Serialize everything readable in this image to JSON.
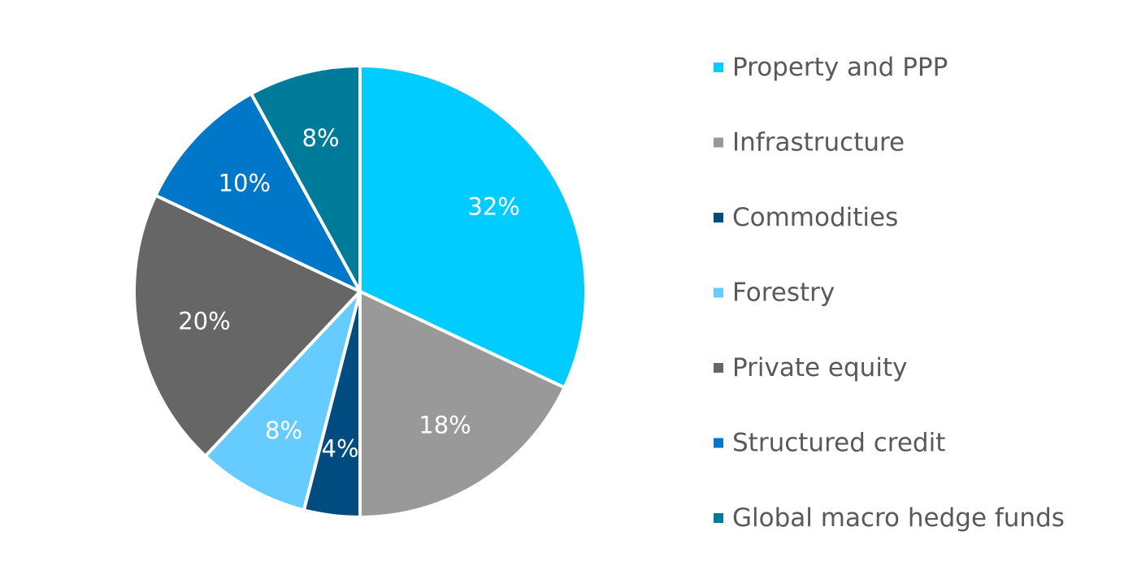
{
  "chart_data": {
    "type": "pie",
    "title": "",
    "categories": [
      "Property and PPP",
      "Infrastructure",
      "Commodities",
      "Forestry",
      "Private equity",
      "Structured credit",
      "Global macro hedge funds"
    ],
    "values": [
      32,
      18,
      4,
      8,
      20,
      10,
      8
    ],
    "labels": [
      "32%",
      "18%",
      "4%",
      "8%",
      "20%",
      "10%",
      "8%"
    ],
    "colors": [
      "#00CCFF",
      "#999999",
      "#004C80",
      "#66CCFF",
      "#666666",
      "#0077C8",
      "#007A99"
    ],
    "legend": {
      "position": "right"
    },
    "data_labels": "inside"
  }
}
